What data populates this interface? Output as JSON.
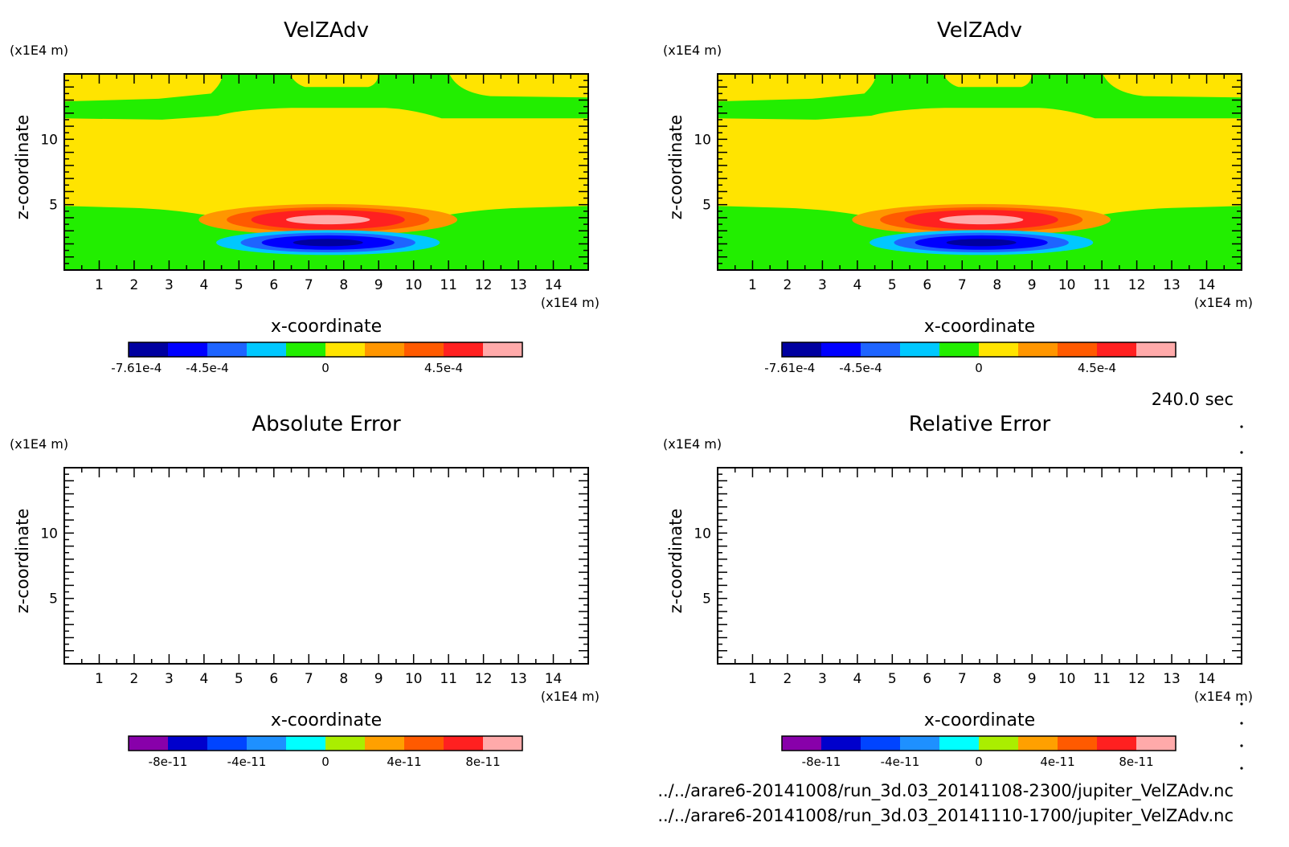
{
  "time_label": "240.0 sec",
  "files": [
    "../../arare6-20141008/run_3d.03_20141108-2300/jupiter_VelZAdv.nc",
    "../../arare6-20141008/run_3d.03_20141110-1700/jupiter_VelZAdv.nc"
  ],
  "chart_data": [
    {
      "type": "heatmap",
      "title": "VelZAdv",
      "xlabel": "x-coordinate",
      "ylabel": "z-coordinate",
      "x_unit": "(x1E4 m)",
      "z_unit": "(x1E4 m)",
      "x_ticks": [
        "1",
        "2",
        "3",
        "4",
        "5",
        "6",
        "7",
        "8",
        "9",
        "10",
        "11",
        "12",
        "13",
        "14"
      ],
      "z_ticks": [
        "10",
        "5"
      ],
      "xlim": [
        0,
        15
      ],
      "zlim": [
        0,
        15
      ],
      "colorbar": {
        "colors": [
          "#0000a0",
          "#0000ff",
          "#1e64ff",
          "#00c8ff",
          "#22ee00",
          "#ffe400",
          "#ff9600",
          "#ff5a00",
          "#ff2020",
          "#ffaaaa"
        ],
        "labels": [
          "-7.61e-4",
          "-4.5e-4",
          "0",
          "4.5e-4"
        ]
      },
      "field": "VelZAdv; dipole centred near x=7.5, z=3 (positive above, negative below)"
    },
    {
      "type": "heatmap",
      "title": "VelZAdv",
      "xlabel": "x-coordinate",
      "ylabel": "z-coordinate",
      "x_unit": "(x1E4 m)",
      "z_unit": "(x1E4 m)",
      "x_ticks": [
        "1",
        "2",
        "3",
        "4",
        "5",
        "6",
        "7",
        "8",
        "9",
        "10",
        "11",
        "12",
        "13",
        "14"
      ],
      "z_ticks": [
        "10",
        "5"
      ],
      "xlim": [
        0,
        15
      ],
      "zlim": [
        0,
        15
      ],
      "colorbar": {
        "colors": [
          "#0000a0",
          "#0000ff",
          "#1e64ff",
          "#00c8ff",
          "#22ee00",
          "#ffe400",
          "#ff9600",
          "#ff5a00",
          "#ff2020",
          "#ffaaaa"
        ],
        "labels": [
          "-7.61e-4",
          "-4.5e-4",
          "0",
          "4.5e-4"
        ]
      },
      "field": "VelZAdv; identical to first panel"
    },
    {
      "type": "heatmap",
      "title": "Absolute Error",
      "xlabel": "x-coordinate",
      "ylabel": "z-coordinate",
      "x_unit": "(x1E4 m)",
      "z_unit": "(x1E4 m)",
      "x_ticks": [
        "1",
        "2",
        "3",
        "4",
        "5",
        "6",
        "7",
        "8",
        "9",
        "10",
        "11",
        "12",
        "13",
        "14"
      ],
      "z_ticks": [
        "10",
        "5"
      ],
      "xlim": [
        0,
        15
      ],
      "zlim": [
        0,
        15
      ],
      "colorbar": {
        "colors": [
          "#8800aa",
          "#0000cc",
          "#0044ff",
          "#1e90ff",
          "#00ffff",
          "#aaee00",
          "#ffa000",
          "#ff5a00",
          "#ff2020",
          "#ffaaaa"
        ],
        "labels": [
          "-8e-11",
          "-4e-11",
          "0",
          "4e-11",
          "8e-11"
        ]
      },
      "field": "blank (zero error)"
    },
    {
      "type": "heatmap",
      "title": "Relative Error",
      "xlabel": "x-coordinate",
      "ylabel": "z-coordinate",
      "x_unit": "(x1E4 m)",
      "z_unit": "(x1E4 m)",
      "x_ticks": [
        "1",
        "2",
        "3",
        "4",
        "5",
        "6",
        "7",
        "8",
        "9",
        "10",
        "11",
        "12",
        "13",
        "14"
      ],
      "z_ticks": [
        "10",
        "5"
      ],
      "xlim": [
        0,
        15
      ],
      "zlim": [
        0,
        15
      ],
      "colorbar": {
        "colors": [
          "#8800aa",
          "#0000cc",
          "#0044ff",
          "#1e90ff",
          "#00ffff",
          "#aaee00",
          "#ffa000",
          "#ff5a00",
          "#ff2020",
          "#ffaaaa"
        ],
        "labels": [
          "-8e-11",
          "-4e-11",
          "0",
          "4e-11",
          "8e-11"
        ]
      },
      "field": "blank (zero error)"
    }
  ]
}
